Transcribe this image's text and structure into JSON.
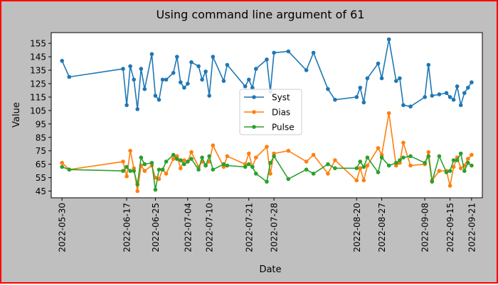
{
  "chart_data": {
    "type": "line",
    "title": "Using command line argument of 61",
    "xlabel": "Date",
    "ylabel": "Value",
    "xlim": [
      "2022-05-27",
      "2022-09-24"
    ],
    "ylim": [
      40,
      163
    ],
    "yticks": [
      45,
      55,
      65,
      75,
      85,
      95,
      105,
      115,
      125,
      135,
      145,
      155
    ],
    "xticks": [
      "2022-05-30",
      "2022-06-17",
      "2022-06-25",
      "2022-07-04",
      "2022-07-10",
      "2022-07-21",
      "2022-07-28",
      "2022-08-20",
      "2022-08-27",
      "2022-09-08",
      "2022-09-15",
      "2022-09-21"
    ],
    "grid": false,
    "legend": "center",
    "x": [
      "2022-05-30",
      "2022-06-01",
      "2022-06-16",
      "2022-06-17",
      "2022-06-18",
      "2022-06-19",
      "2022-06-20",
      "2022-06-21",
      "2022-06-22",
      "2022-06-24",
      "2022-06-25",
      "2022-06-26",
      "2022-06-27",
      "2022-06-28",
      "2022-06-30",
      "2022-07-01",
      "2022-07-02",
      "2022-07-03",
      "2022-07-04",
      "2022-07-05",
      "2022-07-07",
      "2022-07-08",
      "2022-07-09",
      "2022-07-10",
      "2022-07-11",
      "2022-07-14",
      "2022-07-15",
      "2022-07-20",
      "2022-07-21",
      "2022-07-22",
      "2022-07-23",
      "2022-07-26",
      "2022-07-27",
      "2022-07-28",
      "2022-08-01",
      "2022-08-06",
      "2022-08-08",
      "2022-08-12",
      "2022-08-14",
      "2022-08-20",
      "2022-08-21",
      "2022-08-22",
      "2022-08-23",
      "2022-08-26",
      "2022-08-27",
      "2022-08-29",
      "2022-08-31",
      "2022-09-01",
      "2022-09-02",
      "2022-09-04",
      "2022-09-08",
      "2022-09-09",
      "2022-09-10",
      "2022-09-12",
      "2022-09-14",
      "2022-09-15",
      "2022-09-16",
      "2022-09-17",
      "2022-09-18",
      "2022-09-19",
      "2022-09-20",
      "2022-09-21"
    ],
    "series": [
      {
        "name": "Syst",
        "color": "#1f77b4",
        "values": [
          142,
          130,
          136,
          109,
          138,
          128,
          106,
          136,
          121,
          147,
          116,
          113,
          128,
          128,
          133,
          145,
          126,
          122,
          125,
          141,
          138,
          128,
          134,
          116,
          145,
          127,
          139,
          123,
          128,
          122,
          136,
          143,
          119,
          148,
          149,
          135,
          148,
          121,
          113,
          115,
          122,
          111,
          129,
          140,
          129,
          158,
          127,
          129,
          109,
          108,
          115,
          139,
          116,
          117,
          118,
          115,
          113,
          123,
          109,
          118,
          122,
          126
        ]
      },
      {
        "name": "Dias",
        "color": "#ff7f0e",
        "values": [
          66,
          61,
          67,
          56,
          75,
          62,
          45,
          64,
          60,
          64,
          55,
          54,
          61,
          58,
          69,
          71,
          62,
          68,
          67,
          74,
          63,
          67,
          64,
          67,
          79,
          63,
          71,
          65,
          73,
          63,
          70,
          78,
          58,
          73,
          75,
          67,
          72,
          58,
          68,
          53,
          62,
          53,
          64,
          77,
          72,
          103,
          64,
          66,
          81,
          64,
          65,
          74,
          53,
          60,
          60,
          49,
          63,
          70,
          62,
          64,
          69,
          72
        ]
      },
      {
        "name": "Pulse",
        "color": "#2ca02c",
        "values": [
          63,
          61,
          60,
          63,
          60,
          60,
          50,
          70,
          65,
          66,
          46,
          61,
          61,
          67,
          72,
          69,
          68,
          65,
          67,
          69,
          61,
          70,
          64,
          71,
          61,
          65,
          64,
          63,
          65,
          63,
          58,
          52,
          66,
          71,
          54,
          61,
          58,
          65,
          62,
          62,
          67,
          63,
          70,
          59,
          70,
          64,
          66,
          68,
          70,
          71,
          66,
          71,
          52,
          71,
          59,
          60,
          68,
          68,
          73,
          60,
          66,
          64
        ]
      }
    ]
  }
}
